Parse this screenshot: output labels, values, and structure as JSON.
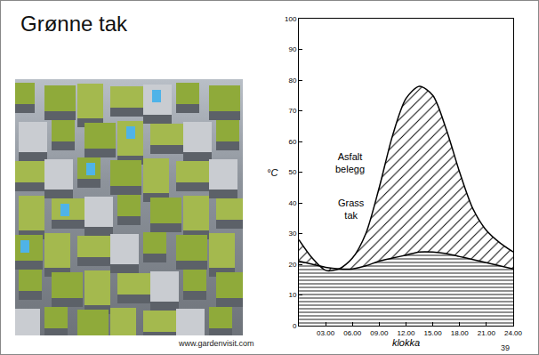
{
  "slide": {
    "title": "Grønne tak",
    "photo_credit": "www.gardenvisit.com",
    "page_number": 39
  },
  "chart_data": {
    "type": "line",
    "x_label": "klokka",
    "y_label": "°C",
    "x": [
      0,
      1.5,
      3,
      4.5,
      6,
      7.5,
      9,
      10.5,
      12,
      13.5,
      15,
      16.5,
      18,
      19.5,
      21,
      22.5,
      24
    ],
    "series": [
      {
        "name": "Asfalt belegg",
        "color": "#000000",
        "values": [
          28,
          22,
          18,
          18.5,
          22,
          30,
          45,
          62,
          74,
          78,
          75,
          64,
          50,
          38,
          31,
          27,
          24
        ]
      },
      {
        "name": "Grass tak",
        "color": "#000000",
        "values": [
          21,
          20,
          19,
          18.5,
          18.5,
          19.5,
          21,
          22,
          23,
          24,
          24,
          23.5,
          22.5,
          21.5,
          20.5,
          19.5,
          18.5
        ]
      }
    ],
    "xlim": [
      0,
      24
    ],
    "xticks": [
      {
        "value": 3,
        "label": "03.00"
      },
      {
        "value": 6,
        "label": "06.00"
      },
      {
        "value": 9,
        "label": "09.00"
      },
      {
        "value": 12,
        "label": "12.00"
      },
      {
        "value": 15,
        "label": "15.00"
      },
      {
        "value": 18,
        "label": "18.00"
      },
      {
        "value": 21,
        "label": "21.00"
      },
      {
        "value": 24,
        "label": "24.00"
      }
    ],
    "ylim": [
      0,
      100
    ],
    "yticks": [
      0,
      10,
      20,
      30,
      40,
      50,
      60,
      70,
      80,
      90,
      100
    ],
    "grid": false
  }
}
